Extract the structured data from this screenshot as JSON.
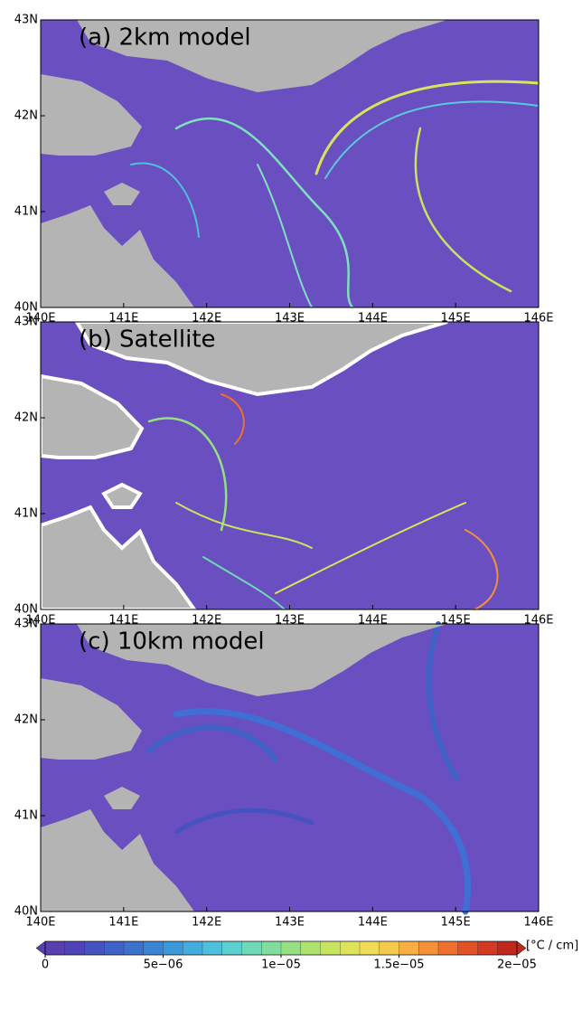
{
  "axes": {
    "xlim": [
      140,
      146
    ],
    "ylim": [
      40,
      43
    ],
    "xticks": [
      {
        "value": 140,
        "label": "140E"
      },
      {
        "value": 141,
        "label": "141E"
      },
      {
        "value": 142,
        "label": "142E"
      },
      {
        "value": 143,
        "label": "143E"
      },
      {
        "value": 144,
        "label": "144E"
      },
      {
        "value": 145,
        "label": "145E"
      },
      {
        "value": 146,
        "label": "146E"
      }
    ],
    "yticks": [
      {
        "value": 40,
        "label": "40N"
      },
      {
        "value": 41,
        "label": "41N"
      },
      {
        "value": 42,
        "label": "42N"
      },
      {
        "value": 43,
        "label": "43N"
      }
    ]
  },
  "panels": [
    {
      "title": "(a) 2km model"
    },
    {
      "title": "(b) Satellite"
    },
    {
      "title": "(c) 10km model"
    }
  ],
  "colorbar": {
    "clim": [
      0,
      2e-05
    ],
    "unit": "[°C / cm]",
    "ticks": [
      0,
      {
        "value": 5e-06,
        "label": "5e−06"
      },
      {
        "value": 1e-05,
        "label": "1e−05"
      },
      {
        "value": 1.5e-05,
        "label": "1.5e−05"
      },
      {
        "value": 2e-05,
        "label": "2e−05"
      }
    ],
    "colors": [
      "#5a3fb0",
      "#4f43b8",
      "#4652bf",
      "#3f62c6",
      "#3b72cc",
      "#3a84d2",
      "#3c98d8",
      "#42acdc",
      "#4cc0dc",
      "#5ccfd0",
      "#6ed8b8",
      "#80dd9c",
      "#94e082",
      "#ade36c",
      "#c6e45e",
      "#dde45a",
      "#eedc58",
      "#f5c84e",
      "#f7ae42",
      "#f49038",
      "#ee702e",
      "#e25226",
      "#d23a22",
      "#c0281e"
    ]
  }
}
